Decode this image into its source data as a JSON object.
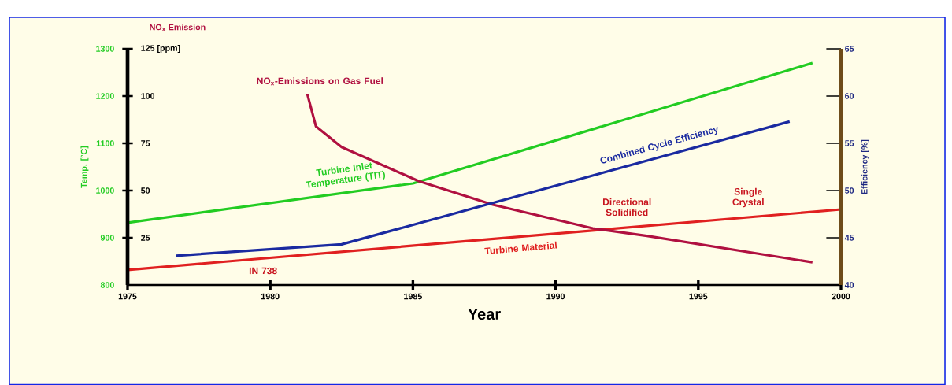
{
  "chart_data": {
    "type": "line",
    "xlabel": "Year",
    "ylabel": "Temp. [°C]",
    "y2label": "Efficiency [%]",
    "y3label": "NO$_{x}$ Emission",
    "xlim": [
      1975,
      2000
    ],
    "xticks": [
      1975,
      1980,
      1985,
      1990,
      1995,
      2000
    ],
    "ylim": [
      800,
      1300
    ],
    "yticks": [
      800,
      900,
      1000,
      1100,
      1200,
      1300
    ],
    "y2lim": [
      40,
      65
    ],
    "y2ticks": [
      40,
      45,
      50,
      55,
      60,
      65
    ],
    "y3lim": [
      0,
      125
    ],
    "y3ticks": [
      25,
      50,
      75,
      100,
      {
        "value": 125,
        "label": "125 [ppm]"
      }
    ],
    "series": [
      {
        "name": "Turbine Inlet Temperature (TIT)",
        "color": "#22cc22",
        "x": [
          1975,
          1985,
          1999
        ],
        "values": [
          932,
          1015,
          1270
        ]
      },
      {
        "name": "Combined Cycle Efficiency",
        "color": "#1a2aa0",
        "axis": "y2",
        "x": [
          1976.7,
          1982.5,
          1998.2
        ],
        "values": [
          43.1,
          44.3,
          57.3
        ]
      },
      {
        "name": "Turbine Material",
        "color": "#e02020",
        "x": [
          1975,
          2000
        ],
        "values": [
          832,
          960
        ]
      },
      {
        "name": "NO$_{x}$-Emissions on Gas Fuel",
        "color": "#b01040",
        "axis": "y3",
        "x": [
          1981.3,
          1981.6,
          1982.5,
          1985.2,
          1987.8,
          1991.3,
          1993.2,
          1999
        ],
        "values": [
          101,
          84,
          73,
          55,
          42.5,
          30,
          26,
          12
        ]
      }
    ],
    "annotations": [
      "IN 738",
      "Directional Solidified",
      "Single Crystal"
    ]
  }
}
